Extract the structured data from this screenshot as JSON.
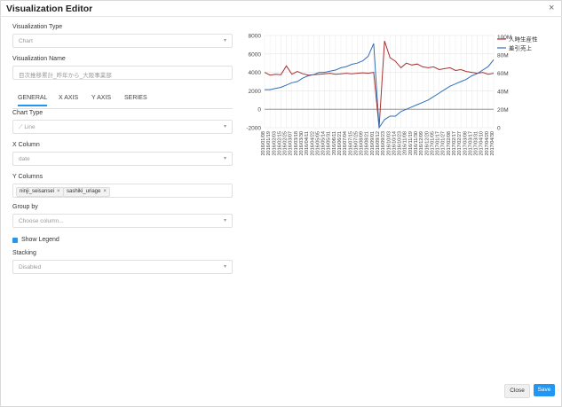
{
  "dialog": {
    "title": "Visualization Editor",
    "close_glyph": "×"
  },
  "form": {
    "viz_type_label": "Visualization Type",
    "viz_type_value": "Chart",
    "viz_name_label": "Visualization Name",
    "viz_name_value": "目次推移累計_昨年から_大阪事業部",
    "tabs": [
      "GENERAL",
      "X AXIS",
      "Y AXIS",
      "SERIES"
    ],
    "chart_type_label": "Chart Type",
    "chart_type_value": "Line",
    "x_column_label": "X Column",
    "x_column_value": "date",
    "y_columns_label": "Y Columns",
    "y_columns": [
      "ninji_seisansei",
      "sashiki_uriage"
    ],
    "group_by_label": "Group by",
    "group_by_placeholder": "Choose column...",
    "show_legend_label": "Show Legend",
    "stacking_label": "Stacking",
    "stacking_value": "Disabled"
  },
  "buttons": {
    "close": "Close",
    "save": "Save"
  },
  "colors": {
    "series1": "#a83232",
    "series2": "#2f6fba",
    "accent": "#2196f3"
  },
  "chart_data": {
    "type": "line",
    "x": [
      "2016/01/08",
      "2016/01/19",
      "2016/02/03",
      "2016/02/15",
      "2016/02/25",
      "2016/03/07",
      "2016/03/18",
      "2016/03/30",
      "2016/04/11",
      "2016/04/22",
      "2016/05/05",
      "2016/05/14",
      "2016/05/31",
      "2016/06/11",
      "2016/06/21",
      "2016/07/04",
      "2016/07/15",
      "2016/07/25",
      "2016/08/09",
      "2016/08/21",
      "2016/09/01",
      "2016/09/12",
      "2016/09/23",
      "2016/10/03",
      "2016/10/14",
      "2016/10/23",
      "2016/11/08",
      "2016/11/19",
      "2016/11/30",
      "2016/12/09",
      "2016/12/20",
      "2017/01/05",
      "2017/01/17",
      "2017/01/27",
      "2017/02/08",
      "2017/02/17",
      "2017/02/27",
      "2017/03/08",
      "2017/03/17",
      "2017/03/31",
      "2017/04/10",
      "2017/04/20",
      "2017/04/30"
    ],
    "series": [
      {
        "name": "人時生産性",
        "axis": "left",
        "values": [
          4000,
          3700,
          3800,
          3750,
          4700,
          3800,
          4100,
          3850,
          3700,
          3750,
          3800,
          3850,
          3900,
          3800,
          3850,
          3900,
          3850,
          3900,
          3950,
          3900,
          4000,
          -2000,
          7400,
          5600,
          5200,
          4500,
          5000,
          4800,
          4900,
          4600,
          4500,
          4600,
          4300,
          4400,
          4500,
          4200,
          4300,
          4100,
          4000,
          3900,
          4000,
          3800,
          3900
        ]
      },
      {
        "name": "差引売上",
        "axis": "right",
        "values": [
          33,
          33,
          34,
          35,
          37,
          39,
          40,
          43,
          45,
          46,
          48,
          48,
          49,
          50,
          52,
          53,
          55,
          56,
          58,
          62,
          73,
          0,
          7,
          10,
          10,
          14,
          16,
          18,
          20,
          22,
          24,
          27,
          30,
          33,
          36,
          38,
          40,
          42,
          45,
          47,
          50,
          53,
          59
        ]
      }
    ],
    "ylim_left": [
      -2000,
      8000
    ],
    "yticks_left": [
      -2000,
      0,
      2000,
      4000,
      6000,
      8000
    ],
    "ylim_right": [
      0,
      80
    ],
    "yticks_right_labels": [
      "0",
      "20M",
      "40M",
      "60M",
      "80M",
      "100M"
    ],
    "grid": true,
    "legend": "top-right"
  }
}
